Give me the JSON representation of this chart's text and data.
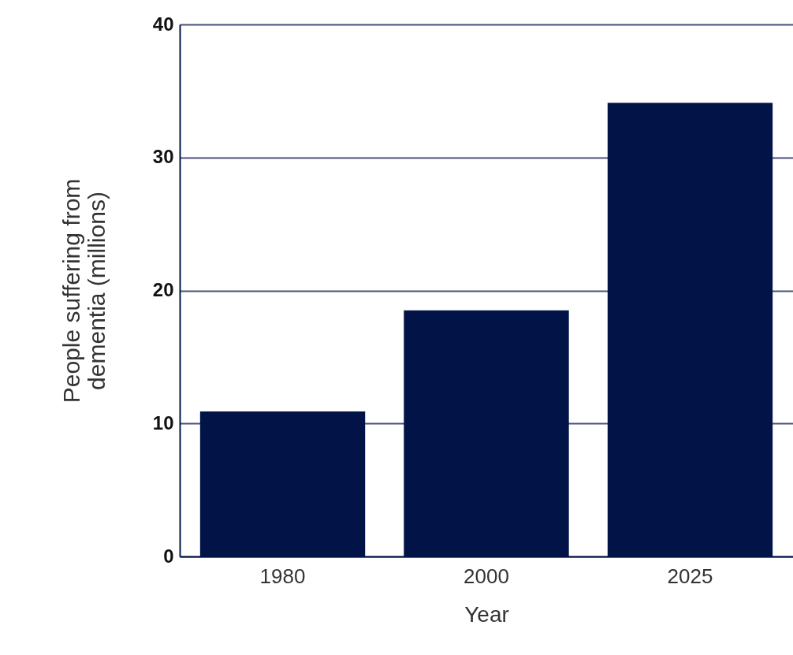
{
  "chart_data": {
    "type": "bar",
    "xlabel": "Year",
    "ylabel": "People suffering from dementia (millions)",
    "categories": [
      "1980",
      "2000",
      "2025"
    ],
    "values": [
      10.9,
      18.5,
      34.1
    ],
    "color": "#021447",
    "ylim": [
      0,
      40
    ],
    "yticks": [
      0,
      10,
      20,
      30,
      40
    ],
    "grid": "y"
  }
}
